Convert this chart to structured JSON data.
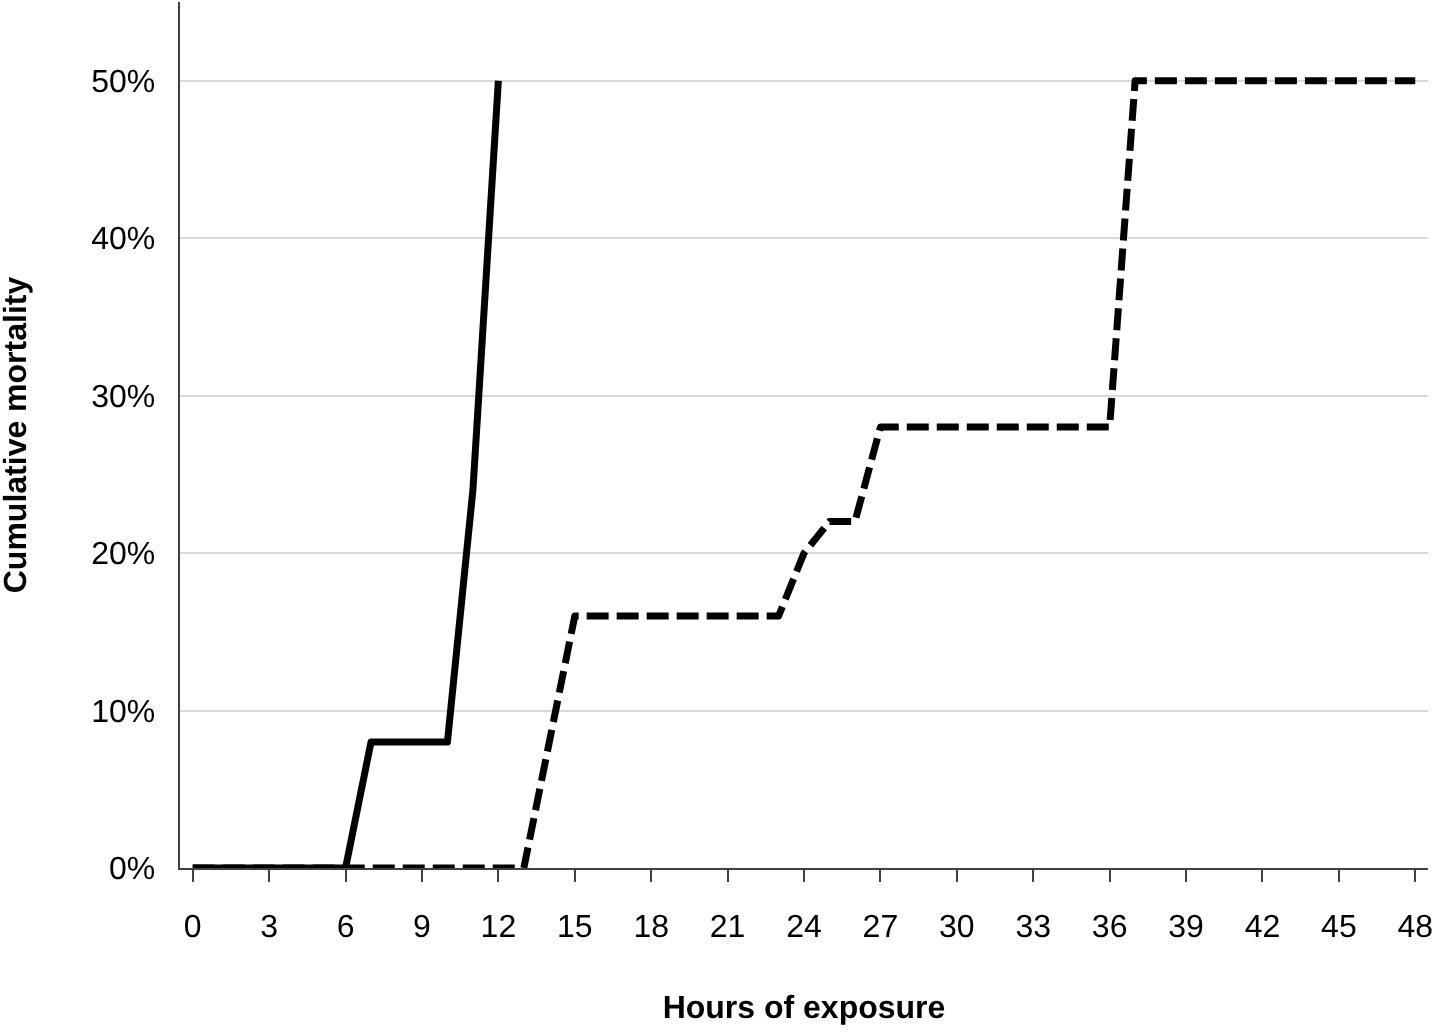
{
  "chart_data": {
    "type": "line",
    "xlabel": "Hours of exposure",
    "ylabel": "Cumulative mortality",
    "xlim": [
      -0.5,
      48.5
    ],
    "xticks": [
      0,
      3,
      6,
      9,
      12,
      15,
      18,
      21,
      24,
      27,
      30,
      33,
      36,
      39,
      42,
      45,
      48
    ],
    "ylim": [
      0,
      55
    ],
    "yticks": [
      {
        "value": 0,
        "label": "0%"
      },
      {
        "value": 10,
        "label": "10%"
      },
      {
        "value": 20,
        "label": "20%"
      },
      {
        "value": 30,
        "label": "30%"
      },
      {
        "value": 40,
        "label": "40%"
      },
      {
        "value": 50,
        "label": "50%"
      }
    ],
    "grid": "y",
    "marker": "none",
    "series": [
      {
        "color": "#000000",
        "line_style": "solid",
        "x": [
          0,
          6,
          7,
          10,
          11,
          12
        ],
        "values": [
          0,
          0,
          8,
          8,
          24,
          50
        ]
      },
      {
        "color": "#000000",
        "line_style": "dashed",
        "x": [
          0,
          13,
          15,
          23,
          24,
          25,
          26,
          27,
          36,
          37,
          48
        ],
        "values": [
          0,
          0,
          16,
          16,
          20,
          22,
          22,
          28,
          28,
          50,
          50
        ]
      }
    ]
  }
}
